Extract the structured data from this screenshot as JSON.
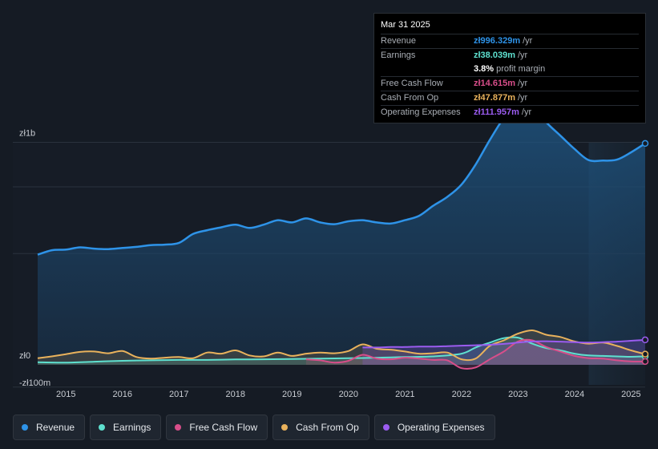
{
  "tooltip": {
    "date": "Mar 31 2025",
    "rows": [
      {
        "label": "Revenue",
        "value": "zł996.329m",
        "unit": "/yr",
        "color": "#2e93e8"
      },
      {
        "label": "Earnings",
        "value": "zł38.039m",
        "unit": "/yr",
        "color": "#5ee0cf"
      },
      {
        "label": "",
        "value": "3.8%",
        "unit": "profit margin",
        "color": "#ffffff"
      },
      {
        "label": "Free Cash Flow",
        "value": "zł14.615m",
        "unit": "/yr",
        "color": "#d84e8a"
      },
      {
        "label": "Cash From Op",
        "value": "zł47.877m",
        "unit": "/yr",
        "color": "#e9b25c"
      },
      {
        "label": "Operating Expenses",
        "value": "zł111.957m",
        "unit": "/yr",
        "color": "#9b5cf0"
      }
    ]
  },
  "legend": [
    {
      "label": "Revenue",
      "color": "#2e93e8"
    },
    {
      "label": "Earnings",
      "color": "#5ee0cf"
    },
    {
      "label": "Free Cash Flow",
      "color": "#d84e8a"
    },
    {
      "label": "Cash From Op",
      "color": "#e9b25c"
    },
    {
      "label": "Operating Expenses",
      "color": "#9b5cf0"
    }
  ],
  "chart_data": {
    "type": "area",
    "title": "",
    "xlabel": "",
    "ylabel": "",
    "y_unit": "PLN millions",
    "ylim": [
      -100,
      1200
    ],
    "xlim": [
      2014.5,
      2025.25
    ],
    "y_tick_labels": [
      {
        "value": 1000,
        "label": "zł1b"
      },
      {
        "value": 0,
        "label": "zł0"
      },
      {
        "value": -100,
        "label": "-zł100m"
      }
    ],
    "x_tick_labels": [
      "2015",
      "2016",
      "2017",
      "2018",
      "2019",
      "2020",
      "2021",
      "2022",
      "2023",
      "2024",
      "2025"
    ],
    "x_tick_values": [
      2015,
      2016,
      2017,
      2018,
      2019,
      2020,
      2021,
      2022,
      2023,
      2024,
      2025
    ],
    "highlight_start": 2024.25,
    "series": [
      {
        "name": "Revenue",
        "color": "#2e93e8",
        "x": [
          2014.5,
          2014.75,
          2015.0,
          2015.25,
          2015.5,
          2015.75,
          2016.0,
          2016.25,
          2016.5,
          2016.75,
          2017.0,
          2017.25,
          2017.5,
          2017.75,
          2018.0,
          2018.25,
          2018.5,
          2018.75,
          2019.0,
          2019.25,
          2019.5,
          2019.75,
          2020.0,
          2020.25,
          2020.5,
          2020.75,
          2021.0,
          2021.25,
          2021.5,
          2021.75,
          2022.0,
          2022.25,
          2022.5,
          2022.75,
          2023.0,
          2023.25,
          2023.5,
          2023.75,
          2024.0,
          2024.25,
          2024.5,
          2024.75,
          2025.0,
          2025.25
        ],
        "values": [
          495,
          515,
          518,
          528,
          522,
          520,
          525,
          530,
          538,
          540,
          548,
          588,
          605,
          618,
          630,
          615,
          630,
          650,
          640,
          658,
          640,
          632,
          645,
          650,
          640,
          635,
          650,
          670,
          715,
          755,
          810,
          900,
          1010,
          1110,
          1180,
          1170,
          1090,
          1030,
          970,
          920,
          918,
          922,
          955,
          995
        ]
      },
      {
        "name": "Earnings",
        "color": "#5ee0cf",
        "x": [
          2014.5,
          2015.0,
          2015.5,
          2016.0,
          2016.5,
          2017.0,
          2017.5,
          2018.0,
          2018.5,
          2019.0,
          2019.5,
          2020.0,
          2020.5,
          2021.0,
          2021.5,
          2022.0,
          2022.25,
          2022.5,
          2022.75,
          2023.0,
          2023.25,
          2023.5,
          2023.75,
          2024.0,
          2024.25,
          2024.5,
          2024.75,
          2025.0,
          2025.25
        ],
        "values": [
          12,
          10,
          14,
          18,
          20,
          22,
          22,
          24,
          25,
          26,
          28,
          30,
          32,
          35,
          38,
          50,
          78,
          100,
          120,
          122,
          95,
          75,
          65,
          50,
          42,
          40,
          38,
          36,
          38
        ]
      },
      {
        "name": "Free Cash Flow",
        "color": "#d84e8a",
        "x": [
          2019.25,
          2019.5,
          2019.75,
          2020.0,
          2020.25,
          2020.5,
          2020.75,
          2021.0,
          2021.25,
          2021.5,
          2021.75,
          2022.0,
          2022.25,
          2022.5,
          2022.75,
          2023.0,
          2023.25,
          2023.5,
          2023.75,
          2024.0,
          2024.25,
          2024.5,
          2024.75,
          2025.0,
          2025.25
        ],
        "values": [
          25,
          20,
          10,
          18,
          45,
          28,
          25,
          32,
          28,
          22,
          20,
          -15,
          -12,
          25,
          60,
          105,
          110,
          80,
          60,
          40,
          30,
          28,
          20,
          15,
          15
        ]
      },
      {
        "name": "Cash From Op",
        "color": "#e9b25c",
        "x": [
          2014.5,
          2014.75,
          2015.0,
          2015.25,
          2015.5,
          2015.75,
          2016.0,
          2016.25,
          2016.5,
          2016.75,
          2017.0,
          2017.25,
          2017.5,
          2017.75,
          2018.0,
          2018.25,
          2018.5,
          2018.75,
          2019.0,
          2019.25,
          2019.5,
          2019.75,
          2020.0,
          2020.25,
          2020.5,
          2020.75,
          2021.0,
          2021.25,
          2021.5,
          2021.75,
          2022.0,
          2022.25,
          2022.5,
          2022.75,
          2023.0,
          2023.25,
          2023.5,
          2023.75,
          2024.0,
          2024.25,
          2024.5,
          2024.75,
          2025.0,
          2025.25
        ],
        "values": [
          30,
          38,
          48,
          58,
          60,
          52,
          62,
          35,
          28,
          32,
          35,
          30,
          55,
          50,
          65,
          42,
          38,
          55,
          40,
          50,
          55,
          52,
          62,
          92,
          72,
          68,
          60,
          50,
          52,
          55,
          25,
          28,
          85,
          110,
          140,
          155,
          135,
          125,
          105,
          95,
          100,
          85,
          65,
          48
        ]
      },
      {
        "name": "Operating Expenses",
        "color": "#9b5cf0",
        "x": [
          2020.25,
          2020.5,
          2020.75,
          2021.0,
          2021.25,
          2021.5,
          2021.75,
          2022.0,
          2022.25,
          2022.5,
          2022.75,
          2023.0,
          2023.25,
          2023.5,
          2023.75,
          2024.0,
          2024.25,
          2024.5,
          2024.75,
          2025.0,
          2025.25
        ],
        "values": [
          78,
          78,
          80,
          80,
          82,
          82,
          84,
          86,
          88,
          90,
          94,
          100,
          105,
          106,
          104,
          102,
          100,
          102,
          104,
          108,
          112
        ]
      }
    ]
  }
}
